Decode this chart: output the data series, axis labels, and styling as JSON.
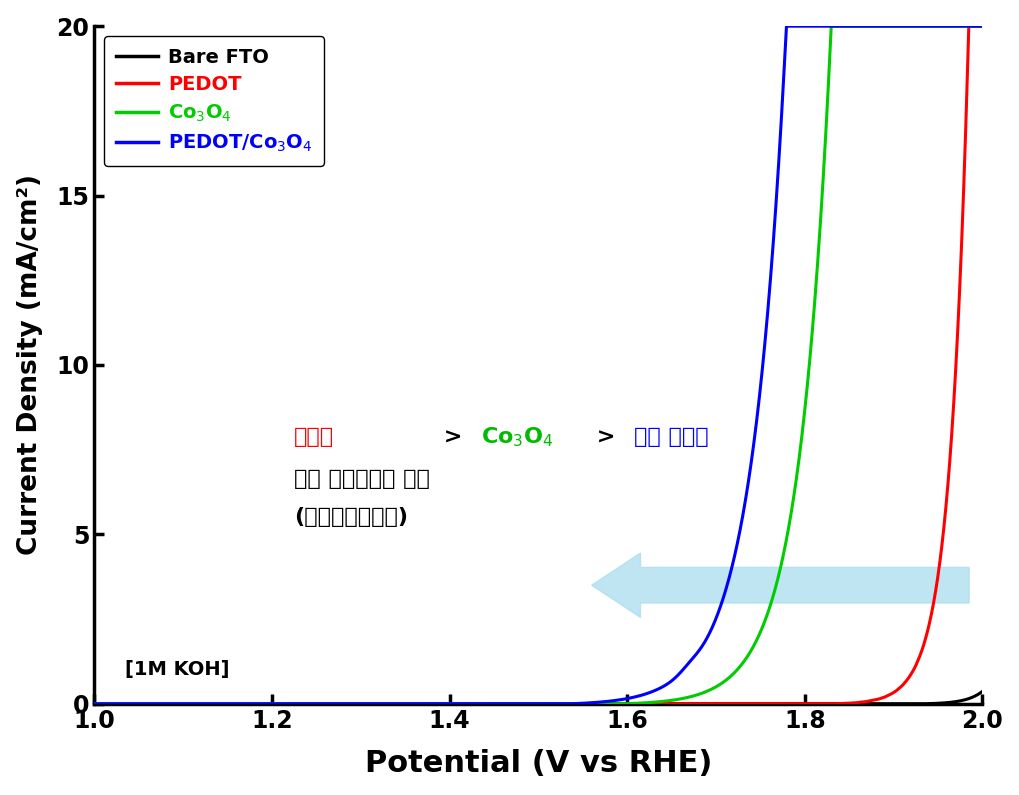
{
  "xlabel": "Potential (V vs RHE)",
  "ylabel": "Current Density (mA/cm²)",
  "xlim": [
    1.0,
    2.0
  ],
  "ylim": [
    0,
    20
  ],
  "xticks": [
    1.0,
    1.2,
    1.4,
    1.6,
    1.8,
    2.0
  ],
  "yticks": [
    0,
    5,
    10,
    15,
    20
  ],
  "background_color": "#ffffff",
  "color_fto": "#000000",
  "color_pedot": "#ff0000",
  "color_co3o4": "#00cc00",
  "color_pedot_co3o4": "#0000ff",
  "arrow_color": "#aaddee",
  "ann_color1": "#ff0000",
  "ann_color2": "#00bb00",
  "ann_color3": "#0000ff",
  "ann_color_black": "#000000",
  "electrolyte_label": "[1M KOH]"
}
